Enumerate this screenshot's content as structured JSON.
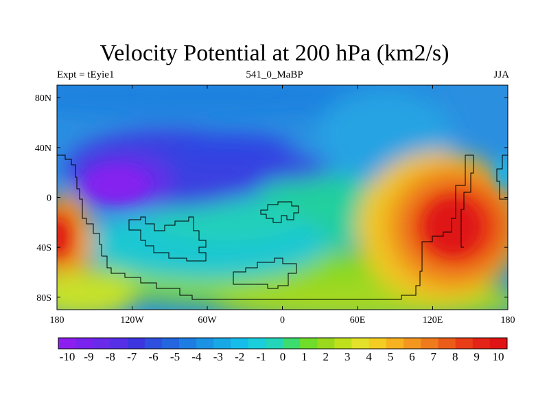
{
  "title": "Velocity Potential at 200 hPa (km2/s)",
  "left_string": "Expt = tEyie1",
  "center_string": "541_0_MaBP",
  "right_string": "JJA",
  "map": {
    "projection": "cylindrical-equidistant",
    "lon_range": [
      -180,
      180
    ],
    "lat_range": [
      -90,
      90
    ],
    "x_ticks": [
      {
        "lon": -180,
        "label": "180"
      },
      {
        "lon": -120,
        "label": "120W"
      },
      {
        "lon": -60,
        "label": "60W"
      },
      {
        "lon": 0,
        "label": "0"
      },
      {
        "lon": 60,
        "label": "60E"
      },
      {
        "lon": 120,
        "label": "120E"
      },
      {
        "lon": 180,
        "label": "180"
      }
    ],
    "y_ticks": [
      {
        "lat": 80,
        "label": "80N"
      },
      {
        "lat": 40,
        "label": "40N"
      },
      {
        "lat": 0,
        "label": "0"
      },
      {
        "lat": -40,
        "label": "40S"
      },
      {
        "lat": -80,
        "label": "80S"
      }
    ],
    "features": [
      {
        "name": "negative-center-east-pacific",
        "lon": -143,
        "lat": 10,
        "value": -10
      },
      {
        "name": "negative-lobe-north-atlantic",
        "lon": -60,
        "lat": 35,
        "value": -7
      },
      {
        "name": "negative-lobe-mediterranean",
        "lon": 5,
        "lat": 22,
        "value": -6
      },
      {
        "name": "positive-center-west-pacific",
        "lon": 140,
        "lat": -22,
        "value": 10
      },
      {
        "name": "positive-center-south-pacific",
        "lon": -175,
        "lat": -32,
        "value": 9
      }
    ]
  },
  "colorbar": {
    "labels": [
      "-10",
      "-9",
      "-8",
      "-7",
      "-6",
      "-5",
      "-4",
      "-3",
      "-2",
      "-1",
      "0",
      "1",
      "2",
      "3",
      "4",
      "5",
      "6",
      "7",
      "8",
      "9",
      "10"
    ],
    "colors": [
      "#8c1ff0",
      "#7a22ee",
      "#6a2aea",
      "#5530e6",
      "#3d35e0",
      "#2f4fdf",
      "#2465e0",
      "#1e7de2",
      "#1a93e4",
      "#16a9e6",
      "#17bdea",
      "#1acfdb",
      "#24d6b9",
      "#3ddc6e",
      "#6fdd2a",
      "#9ad91e",
      "#bfe11c",
      "#e3e12a",
      "#f4cd22",
      "#f6b21f",
      "#f3971e",
      "#f07b1c",
      "#ec5c19",
      "#e93d18",
      "#e42416",
      "#e01414"
    ]
  }
}
